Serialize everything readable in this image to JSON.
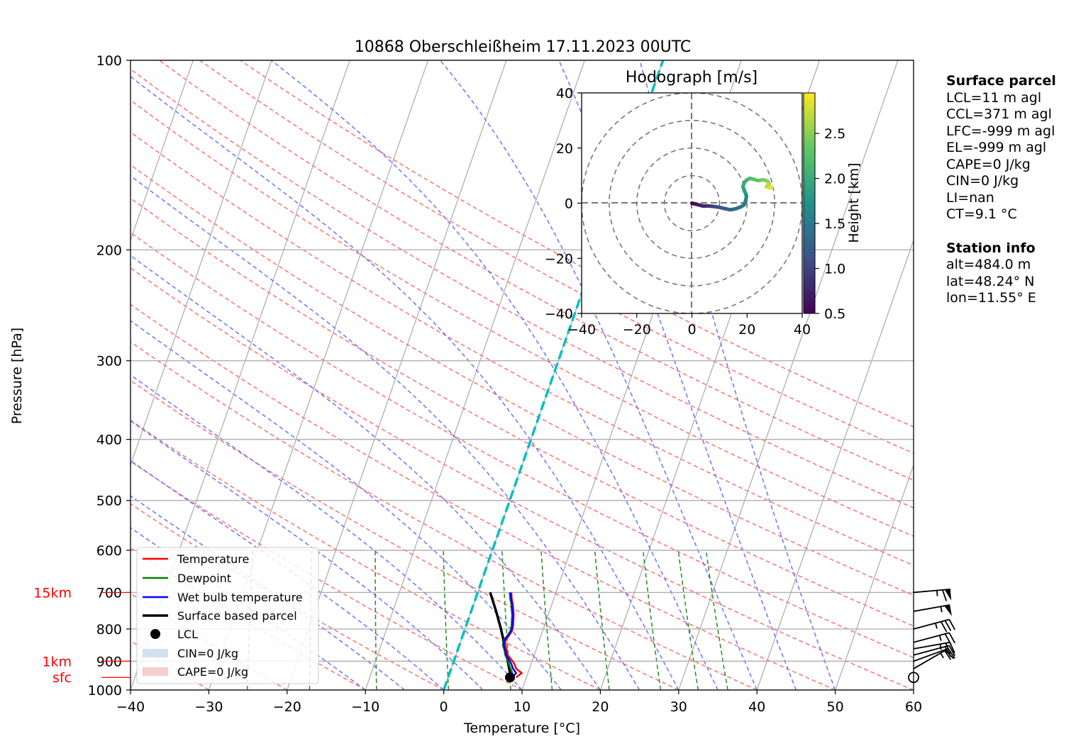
{
  "chart_data": [
    {
      "type": "line",
      "title": "10868 Oberschleißheim 17.11.2023 00UTC",
      "xlabel": "Temperature [°C]",
      "ylabel": "Pressure [hPa]",
      "xlim": [
        -40,
        60
      ],
      "ylim": [
        1000,
        100
      ],
      "y_scale": "log",
      "x_ticks": [
        "−40",
        "−30",
        "−20",
        "−10",
        "0",
        "10",
        "20",
        "30",
        "40",
        "50",
        "60"
      ],
      "x_tick_values": [
        -40,
        -30,
        -20,
        -10,
        0,
        10,
        20,
        30,
        40,
        50,
        60
      ],
      "y_ticks": [
        "100",
        "200",
        "300",
        "400",
        "500",
        "600",
        "700",
        "800",
        "900",
        "1000"
      ],
      "y_tick_values": [
        100,
        200,
        300,
        400,
        500,
        600,
        700,
        800,
        900,
        1000
      ],
      "height_labels": [
        {
          "label": "15km",
          "p": 700
        },
        {
          "label": "1km",
          "p": 900
        },
        {
          "label": "sfc",
          "p": 955
        }
      ],
      "series": [
        {
          "name": "Temperature",
          "color": "#ff0000",
          "p": [
            955,
            940,
            925,
            910,
            895,
            880,
            865,
            850,
            835,
            820,
            805,
            790,
            775,
            760,
            745,
            730,
            715,
            700
          ],
          "t": [
            8.7,
            9.2,
            8.3,
            7.9,
            7.3,
            6.6,
            6.3,
            5.9,
            5.7,
            5.9,
            6.1,
            6.0,
            5.8,
            5.6,
            5.3,
            5.0,
            4.6,
            4.3
          ]
        },
        {
          "name": "Dewpoint",
          "color": "#008000",
          "p": [
            955,
            940,
            925,
            910,
            895,
            880,
            865,
            850,
            835,
            820,
            805,
            790,
            775,
            760,
            745,
            730,
            715,
            700
          ],
          "t": [
            7.8,
            8.0,
            7.6,
            7.2,
            6.8,
            6.3,
            6.0,
            5.6,
            5.4,
            5.7,
            5.9,
            5.8,
            5.6,
            5.4,
            5.1,
            4.8,
            4.4,
            4.1
          ]
        },
        {
          "name": "Wet bulb temperature",
          "color": "#0000ff",
          "p": [
            955,
            940,
            925,
            910,
            895,
            880,
            865,
            850,
            835,
            820,
            805,
            790,
            775,
            760,
            745,
            730,
            715,
            700
          ],
          "t": [
            8.2,
            8.5,
            7.9,
            7.5,
            7.0,
            6.4,
            6.1,
            5.7,
            5.5,
            5.8,
            6.0,
            5.9,
            5.7,
            5.5,
            5.2,
            4.9,
            4.5,
            4.2
          ]
        },
        {
          "name": "Surface based parcel",
          "color": "#000000",
          "p": [
            955,
            900,
            850,
            800,
            750,
            700
          ],
          "t": [
            8.0,
            6.9,
            5.8,
            4.6,
            3.2,
            1.6
          ]
        }
      ],
      "lcl": {
        "name": "LCL",
        "p": 955,
        "t": 7.9
      },
      "cin_label": "CIN=0 J/kg",
      "cape_label": "CAPE=0 J/kg",
      "legend_placement": "lower-left",
      "wind_barbs": [
        {
          "p": 955,
          "type": "calm"
        },
        {
          "p": 925,
          "speed_kt": 15,
          "dir": 240
        },
        {
          "p": 900,
          "speed_kt": 20,
          "dir": 250
        },
        {
          "p": 880,
          "speed_kt": 20,
          "dir": 255
        },
        {
          "p": 860,
          "speed_kt": 25,
          "dir": 260
        },
        {
          "p": 840,
          "speed_kt": 25,
          "dir": 255
        },
        {
          "p": 800,
          "speed_kt": 35,
          "dir": 255
        },
        {
          "p": 750,
          "speed_kt": 55,
          "dir": 260
        },
        {
          "p": 700,
          "speed_kt": 65,
          "dir": 265
        }
      ],
      "colors": {
        "isotherm": "#b0b0b0",
        "dry_adiabat": "#ff7070",
        "moist_adiabat": "#7070ff",
        "mixing_ratio": "#228b22",
        "zero_isotherm": "#00c0c0"
      }
    },
    {
      "type": "scatter",
      "title": "Hodograph [m/s]",
      "xlim": [
        -40,
        40
      ],
      "ylim": [
        -40,
        40
      ],
      "x_ticks": [
        "−40",
        "−20",
        "0",
        "20",
        "40"
      ],
      "y_ticks": [
        "40",
        "20",
        "0",
        "−20",
        "−40"
      ],
      "rings": [
        10,
        20,
        30,
        40
      ],
      "colorbar_label": "Height [km]",
      "colorbar_ticks": [
        "0.5",
        "1.0",
        "1.5",
        "2.0",
        "2.5"
      ],
      "colorbar_range": [
        0.5,
        2.95
      ],
      "u": [
        0,
        2,
        4,
        6,
        8,
        10,
        12,
        14,
        16,
        18,
        19,
        19.5,
        19.8,
        19.5,
        19,
        18.5,
        19,
        20,
        21,
        22,
        24,
        26,
        27.5,
        28,
        27,
        28.5,
        29
      ],
      "v": [
        0,
        -0.5,
        -1,
        -1,
        -1.2,
        -1.5,
        -2,
        -2.4,
        -2,
        -1.2,
        -0.5,
        1,
        2.5,
        3.5,
        4.5,
        6,
        7.5,
        8.5,
        9,
        8.8,
        8.2,
        8.5,
        8,
        7,
        6,
        5.5,
        6
      ],
      "h": [
        0.5,
        0.62,
        0.74,
        0.86,
        0.98,
        1.1,
        1.18,
        1.26,
        1.34,
        1.42,
        1.5,
        1.58,
        1.66,
        1.74,
        1.82,
        1.9,
        1.98,
        2.06,
        2.14,
        2.22,
        2.3,
        2.4,
        2.5,
        2.6,
        2.7,
        2.8,
        2.9
      ]
    }
  ],
  "surface_parcel": {
    "heading": "Surface parcel",
    "lines": [
      "LCL=11 m agl",
      "CCL=371 m agl",
      "LFC=-999 m agl",
      "EL=-999 m agl",
      "CAPE=0 J/kg",
      "CIN=0 J/kg",
      "LI=nan",
      "CT=9.1 °C"
    ]
  },
  "station_info": {
    "heading": "Station info",
    "lines": [
      "alt=484.0 m",
      "lat=48.24° N",
      "lon=11.55° E"
    ]
  }
}
